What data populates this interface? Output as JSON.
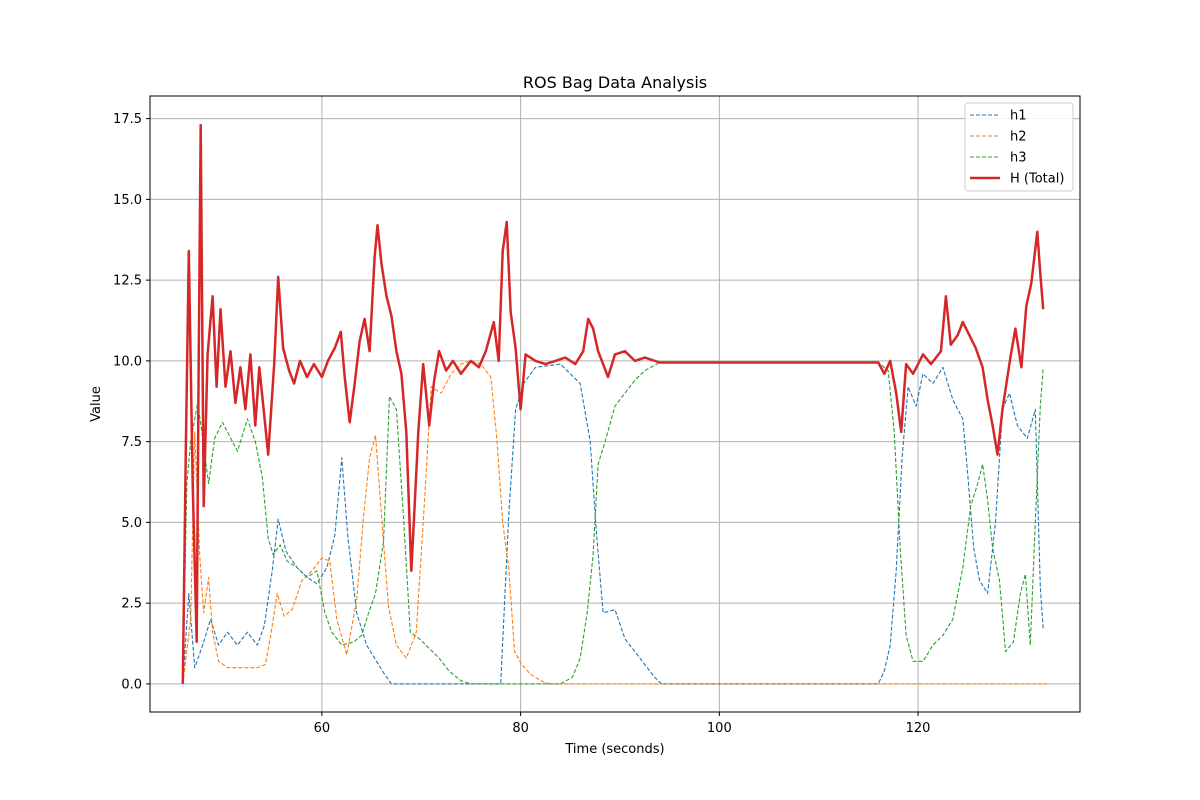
{
  "chart_data": {
    "type": "line",
    "title": "ROS Bag Data Analysis",
    "xlabel": "Time (seconds)",
    "ylabel": "Value",
    "xlim": [
      42.7,
      136.3
    ],
    "ylim": [
      -0.87,
      18.2
    ],
    "xticks": [
      60,
      80,
      100,
      120
    ],
    "xtick_labels": [
      "60",
      "80",
      "100",
      "120"
    ],
    "yticks": [
      0,
      2.5,
      5,
      7.5,
      10,
      12.5,
      15,
      17.5
    ],
    "ytick_labels": [
      "0.0",
      "2.5",
      "5.0",
      "7.5",
      "10.0",
      "12.5",
      "15.0",
      "17.5"
    ],
    "grid": true,
    "legend": "top-right",
    "series": [
      {
        "name": "h1",
        "color": "#1f77b4",
        "style": "dashed",
        "points": [
          [
            46,
            0
          ],
          [
            46.6,
            2.8
          ],
          [
            47.2,
            0.5
          ],
          [
            48,
            1.2
          ],
          [
            48.8,
            2.0
          ],
          [
            49.6,
            1.2
          ],
          [
            50.5,
            1.6
          ],
          [
            51.5,
            1.2
          ],
          [
            52.5,
            1.6
          ],
          [
            53.5,
            1.2
          ],
          [
            54.2,
            1.8
          ],
          [
            55,
            3.5
          ],
          [
            55.6,
            5.1
          ],
          [
            56.4,
            4.1
          ],
          [
            57.5,
            3.6
          ],
          [
            58.5,
            3.3
          ],
          [
            59.5,
            3.1
          ],
          [
            60.5,
            3.6
          ],
          [
            61.3,
            4.6
          ],
          [
            62,
            7.0
          ],
          [
            62.6,
            4.6
          ],
          [
            63.5,
            2.2
          ],
          [
            64.5,
            1.2
          ],
          [
            65.5,
            0.7
          ],
          [
            66.3,
            0.3
          ],
          [
            67,
            0
          ],
          [
            78,
            0
          ],
          [
            78.8,
            5.2
          ],
          [
            79.5,
            8.5
          ],
          [
            80.3,
            9.3
          ],
          [
            81.5,
            9.8
          ],
          [
            84,
            9.9
          ],
          [
            86,
            9.3
          ],
          [
            87,
            7.5
          ],
          [
            87.6,
            4.8
          ],
          [
            88.3,
            2.2
          ],
          [
            89.5,
            2.3
          ],
          [
            90.5,
            1.4
          ],
          [
            91.5,
            1.0
          ],
          [
            92.5,
            0.6
          ],
          [
            93.5,
            0.2
          ],
          [
            94.2,
            0
          ],
          [
            116,
            0
          ],
          [
            116.6,
            0.4
          ],
          [
            117.2,
            1.2
          ],
          [
            117.8,
            3.5
          ],
          [
            118.4,
            7.0
          ],
          [
            119,
            9.2
          ],
          [
            119.8,
            8.6
          ],
          [
            120.5,
            9.6
          ],
          [
            121.5,
            9.3
          ],
          [
            122.5,
            9.8
          ],
          [
            123.5,
            8.8
          ],
          [
            124.5,
            8.2
          ],
          [
            125,
            6.5
          ],
          [
            125.6,
            4.2
          ],
          [
            126.2,
            3.2
          ],
          [
            127,
            2.8
          ],
          [
            127.8,
            5.0
          ],
          [
            128.5,
            8.5
          ],
          [
            129.2,
            9.0
          ],
          [
            130,
            8.0
          ],
          [
            131,
            7.6
          ],
          [
            131.8,
            8.5
          ],
          [
            132.3,
            3.0
          ],
          [
            132.6,
            1.7
          ]
        ]
      },
      {
        "name": "h2",
        "color": "#ff7f0e",
        "style": "dashed",
        "points": [
          [
            46,
            0
          ],
          [
            46.8,
            2.0
          ],
          [
            47.2,
            7.8
          ],
          [
            47.7,
            4.0
          ],
          [
            48.1,
            2.2
          ],
          [
            48.6,
            3.3
          ],
          [
            49,
            1.6
          ],
          [
            49.6,
            0.7
          ],
          [
            50.5,
            0.5
          ],
          [
            52.5,
            0.5
          ],
          [
            53.5,
            0.5
          ],
          [
            54.3,
            0.6
          ],
          [
            54.8,
            1.4
          ],
          [
            55.5,
            2.8
          ],
          [
            56.2,
            2.1
          ],
          [
            57,
            2.3
          ],
          [
            58,
            3.2
          ],
          [
            59,
            3.5
          ],
          [
            60,
            3.9
          ],
          [
            60.8,
            3.8
          ],
          [
            61.5,
            2.0
          ],
          [
            62.5,
            0.9
          ],
          [
            63.5,
            2.6
          ],
          [
            64.2,
            5.2
          ],
          [
            64.8,
            7.0
          ],
          [
            65.4,
            7.7
          ],
          [
            66,
            5.2
          ],
          [
            66.7,
            2.4
          ],
          [
            67.5,
            1.2
          ],
          [
            68.5,
            0.8
          ],
          [
            69.5,
            1.6
          ],
          [
            70.3,
            5.5
          ],
          [
            71,
            9.2
          ],
          [
            72,
            9.0
          ],
          [
            73,
            9.6
          ],
          [
            74,
            9.9
          ],
          [
            75,
            10.0
          ],
          [
            76,
            9.9
          ],
          [
            77,
            9.5
          ],
          [
            77.6,
            7.6
          ],
          [
            78.2,
            5.0
          ],
          [
            78.8,
            3.6
          ],
          [
            79.4,
            1.0
          ],
          [
            80.1,
            0.6
          ],
          [
            81,
            0.3
          ],
          [
            82,
            0.1
          ],
          [
            83,
            0
          ],
          [
            133,
            0
          ]
        ]
      },
      {
        "name": "h3",
        "color": "#2ca02c",
        "style": "dashed",
        "points": [
          [
            46,
            0
          ],
          [
            46.4,
            6.2
          ],
          [
            46.8,
            7.5
          ],
          [
            47.5,
            8.7
          ],
          [
            48,
            7.6
          ],
          [
            48.6,
            6.2
          ],
          [
            49.2,
            7.6
          ],
          [
            50,
            8.1
          ],
          [
            51.5,
            7.2
          ],
          [
            52.5,
            8.2
          ],
          [
            53.3,
            7.5
          ],
          [
            54,
            6.4
          ],
          [
            54.6,
            4.5
          ],
          [
            55.1,
            4.0
          ],
          [
            55.8,
            4.3
          ],
          [
            56.5,
            3.8
          ],
          [
            57.5,
            3.6
          ],
          [
            58.5,
            3.3
          ],
          [
            59.5,
            3.5
          ],
          [
            60.3,
            2.2
          ],
          [
            61,
            1.6
          ],
          [
            62,
            1.2
          ],
          [
            63.2,
            1.3
          ],
          [
            64,
            1.5
          ],
          [
            64.7,
            2.2
          ],
          [
            65.4,
            2.8
          ],
          [
            66.2,
            4.4
          ],
          [
            66.8,
            8.9
          ],
          [
            67.5,
            8.5
          ],
          [
            68.2,
            5.2
          ],
          [
            68.9,
            1.6
          ],
          [
            69.8,
            1.4
          ],
          [
            70.8,
            1.1
          ],
          [
            71.8,
            0.8
          ],
          [
            72.8,
            0.4
          ],
          [
            74,
            0.1
          ],
          [
            75,
            0
          ],
          [
            84,
            0
          ],
          [
            85.2,
            0.2
          ],
          [
            86,
            0.8
          ],
          [
            86.7,
            2.2
          ],
          [
            87.3,
            4.0
          ],
          [
            87.8,
            6.8
          ],
          [
            88.5,
            7.5
          ],
          [
            89.5,
            8.6
          ],
          [
            90.5,
            9.0
          ],
          [
            91.5,
            9.4
          ],
          [
            92.5,
            9.7
          ],
          [
            94,
            9.95
          ],
          [
            116,
            9.95
          ],
          [
            117,
            9.7
          ],
          [
            117.6,
            7.8
          ],
          [
            118.2,
            4.2
          ],
          [
            118.8,
            1.5
          ],
          [
            119.5,
            0.7
          ],
          [
            120.5,
            0.7
          ],
          [
            121.5,
            1.2
          ],
          [
            122.5,
            1.5
          ],
          [
            123.5,
            2.0
          ],
          [
            124.5,
            3.6
          ],
          [
            125.3,
            5.5
          ],
          [
            126,
            6.2
          ],
          [
            126.5,
            6.8
          ],
          [
            127,
            5.7
          ],
          [
            127.5,
            4.2
          ],
          [
            128.2,
            3.2
          ],
          [
            128.8,
            1.0
          ],
          [
            129.6,
            1.3
          ],
          [
            130.3,
            2.8
          ],
          [
            130.8,
            3.4
          ],
          [
            131.3,
            1.2
          ],
          [
            131.8,
            5.0
          ],
          [
            132.3,
            8.6
          ],
          [
            132.6,
            9.8
          ]
        ]
      },
      {
        "name": "H (Total)",
        "color": "#d62728",
        "style": "solid",
        "points": [
          [
            46,
            0
          ],
          [
            46.3,
            7.2
          ],
          [
            46.6,
            13.4
          ],
          [
            47,
            6.2
          ],
          [
            47.4,
            1.3
          ],
          [
            47.6,
            10.0
          ],
          [
            47.8,
            17.3
          ],
          [
            48.1,
            5.5
          ],
          [
            48.5,
            10.2
          ],
          [
            49,
            12.0
          ],
          [
            49.4,
            9.2
          ],
          [
            49.8,
            11.6
          ],
          [
            50.3,
            9.2
          ],
          [
            50.8,
            10.3
          ],
          [
            51.3,
            8.7
          ],
          [
            51.8,
            9.8
          ],
          [
            52.3,
            8.5
          ],
          [
            52.8,
            10.2
          ],
          [
            53.3,
            8.0
          ],
          [
            53.7,
            9.8
          ],
          [
            54.1,
            8.6
          ],
          [
            54.6,
            7.1
          ],
          [
            55.2,
            9.9
          ],
          [
            55.6,
            12.6
          ],
          [
            56.1,
            10.4
          ],
          [
            56.7,
            9.7
          ],
          [
            57.2,
            9.3
          ],
          [
            57.8,
            10.0
          ],
          [
            58.5,
            9.5
          ],
          [
            59.2,
            9.9
          ],
          [
            60,
            9.5
          ],
          [
            60.6,
            10.0
          ],
          [
            61.3,
            10.4
          ],
          [
            61.9,
            10.9
          ],
          [
            62.3,
            9.5
          ],
          [
            62.8,
            8.1
          ],
          [
            63.3,
            9.3
          ],
          [
            63.8,
            10.6
          ],
          [
            64.3,
            11.3
          ],
          [
            64.8,
            10.3
          ],
          [
            65.3,
            13.2
          ],
          [
            65.6,
            14.2
          ],
          [
            66,
            13.0
          ],
          [
            66.5,
            12.0
          ],
          [
            67,
            11.4
          ],
          [
            67.5,
            10.3
          ],
          [
            68,
            9.6
          ],
          [
            68.5,
            7.8
          ],
          [
            69,
            3.5
          ],
          [
            69.3,
            5.3
          ],
          [
            69.7,
            7.8
          ],
          [
            70.2,
            9.9
          ],
          [
            70.8,
            8.0
          ],
          [
            71.3,
            9.4
          ],
          [
            71.8,
            10.3
          ],
          [
            72.5,
            9.7
          ],
          [
            73.2,
            10.0
          ],
          [
            74,
            9.6
          ],
          [
            75,
            10.0
          ],
          [
            75.8,
            9.8
          ],
          [
            76.5,
            10.3
          ],
          [
            77.3,
            11.2
          ],
          [
            77.8,
            10.0
          ],
          [
            78.2,
            13.4
          ],
          [
            78.6,
            14.3
          ],
          [
            79,
            11.5
          ],
          [
            79.5,
            10.4
          ],
          [
            80,
            8.5
          ],
          [
            80.5,
            10.2
          ],
          [
            81.5,
            10.0
          ],
          [
            82.5,
            9.9
          ],
          [
            83.5,
            10.0
          ],
          [
            84.5,
            10.1
          ],
          [
            85.5,
            9.9
          ],
          [
            86.3,
            10.3
          ],
          [
            86.8,
            11.3
          ],
          [
            87.3,
            11.0
          ],
          [
            87.8,
            10.3
          ],
          [
            88.3,
            9.9
          ],
          [
            88.8,
            9.5
          ],
          [
            89.5,
            10.2
          ],
          [
            90.5,
            10.3
          ],
          [
            91.5,
            10.0
          ],
          [
            92.5,
            10.1
          ],
          [
            94,
            9.95
          ],
          [
            116,
            9.95
          ],
          [
            116.6,
            9.6
          ],
          [
            117.2,
            10.0
          ],
          [
            117.8,
            9.0
          ],
          [
            118.3,
            7.8
          ],
          [
            118.8,
            9.9
          ],
          [
            119.5,
            9.6
          ],
          [
            120.5,
            10.2
          ],
          [
            121.3,
            9.9
          ],
          [
            122.3,
            10.3
          ],
          [
            122.8,
            12.0
          ],
          [
            123.3,
            10.5
          ],
          [
            124,
            10.8
          ],
          [
            124.5,
            11.2
          ],
          [
            125,
            10.9
          ],
          [
            125.8,
            10.4
          ],
          [
            126.5,
            9.8
          ],
          [
            127,
            8.8
          ],
          [
            127.5,
            8.0
          ],
          [
            128,
            7.1
          ],
          [
            128.5,
            8.5
          ],
          [
            129.3,
            10.1
          ],
          [
            129.8,
            11.0
          ],
          [
            130.4,
            9.8
          ],
          [
            130.9,
            11.7
          ],
          [
            131.4,
            12.4
          ],
          [
            132,
            14.0
          ],
          [
            132.3,
            12.7
          ],
          [
            132.6,
            11.6
          ]
        ]
      }
    ]
  }
}
